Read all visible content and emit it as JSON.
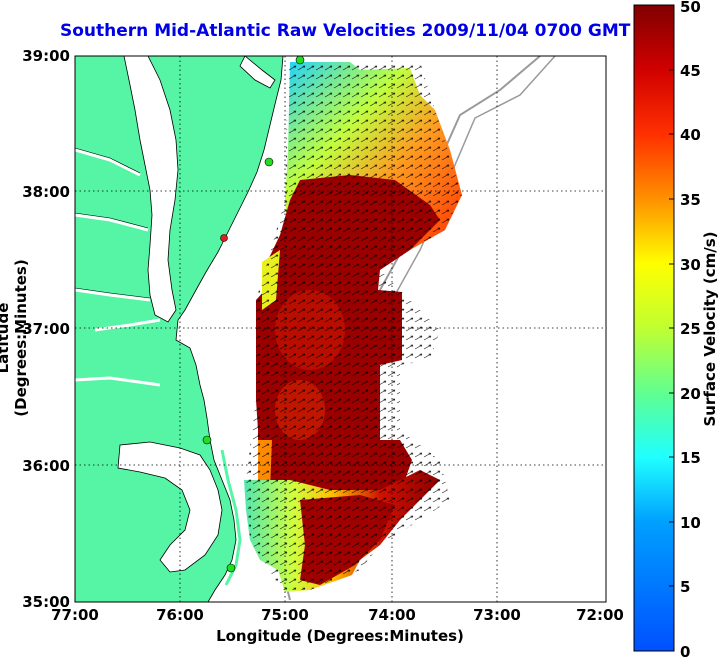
{
  "title": "Southern Mid-Atlantic Raw Velocities 2009/11/04 0700 GMT",
  "x_axis_label": "Longitude (Degrees:Minutes)",
  "y_axis_label": "Latitude (Degrees:Minutes)",
  "colorbar_label": "Surface Velocity (cm/s)",
  "x_ticks": [
    "77:00",
    "76:00",
    "75:00",
    "74:00",
    "73:00",
    "72:00"
  ],
  "y_ticks": [
    "39:00",
    "38:00",
    "37:00",
    "36:00",
    "35:00"
  ],
  "colorbar_ticks": [
    "0",
    "5",
    "10",
    "15",
    "20",
    "25",
    "30",
    "35",
    "40",
    "45",
    "50"
  ],
  "colorbar_range_cm_s": [
    0,
    50
  ],
  "colors": {
    "land": "#55f5a5",
    "coastline": "#000000",
    "bathymetry_contour": "#9a9a9a",
    "station_marker": "#22dd22",
    "title": "#0000e6"
  },
  "chart_data": {
    "type": "heatmap",
    "title": "Southern Mid-Atlantic Raw Velocities 2009/11/04 0700 GMT",
    "xlabel": "Longitude (Degrees:Minutes)",
    "ylabel": "Latitude (Degrees:Minutes)",
    "xlim": [
      -77,
      -72
    ],
    "ylim": [
      35,
      39
    ],
    "colorbar": {
      "label": "Surface Velocity (cm/s)",
      "min": 0,
      "max": 50
    },
    "grid": true
  }
}
